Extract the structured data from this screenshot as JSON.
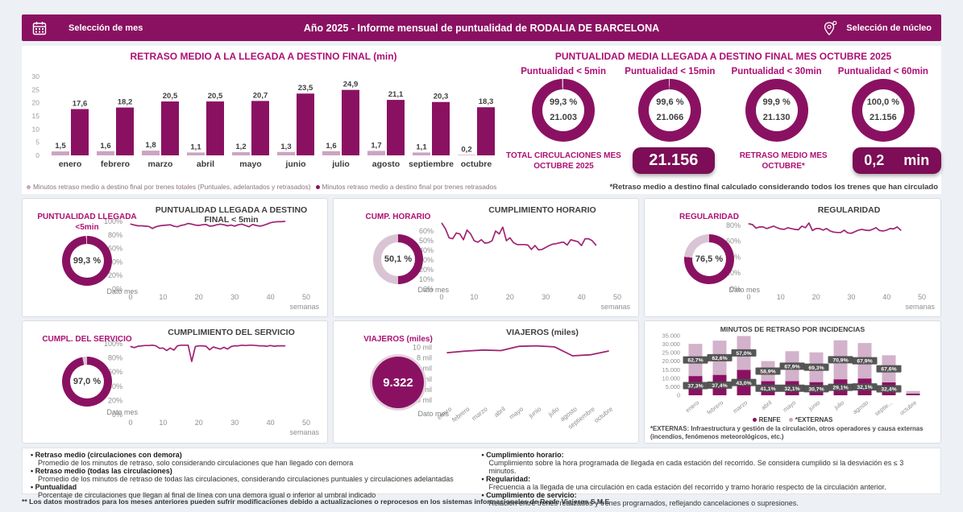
{
  "header": {
    "month_selector": "Selección de mes",
    "title": "Año 2025 - Informe mensual de puntualidad de RODALIA DE BARCELONA",
    "nucleo_selector": "Selección de núcleo"
  },
  "colors": {
    "primary_dark": "#8a1162",
    "primary_light": "#cca4c1",
    "externas_light": "#d3b2cb",
    "ring_light": "#d9c4d3",
    "accent_magenta": "#ad0f74",
    "line": "#a02472",
    "badge_bg": "#7c0d56",
    "chip_bg": "#4d4d4d"
  },
  "retraso_chart": {
    "type": "bar",
    "title": "RETRASO MEDIO A LA LLEGADA A DESTINO FINAL (min)",
    "categories": [
      "enero",
      "febrero",
      "marzo",
      "abril",
      "mayo",
      "junio",
      "julio",
      "agosto",
      "septiembre",
      "octubre"
    ],
    "series": [
      {
        "name": "Minutos retraso medio a destino final por trenes totales (Puntuales, adelantados y retrasados)",
        "values": [
          1.5,
          1.6,
          1.8,
          1.1,
          1.2,
          1.3,
          1.6,
          1.7,
          1.1,
          0.2
        ],
        "labels": [
          "1,5",
          "1,6",
          "1,8",
          "1,1",
          "1,2",
          "1,3",
          "1,6",
          "1,7",
          "1,1",
          "0,2"
        ]
      },
      {
        "name": "Minutos retraso medio a destino final por trenes retrasados",
        "values": [
          17.6,
          18.2,
          20.5,
          20.5,
          20.7,
          23.5,
          24.9,
          21.1,
          20.3,
          18.3
        ],
        "labels": [
          "17,6",
          "18,2",
          "20,5",
          "20,5",
          "20,7",
          "23,5",
          "24,9",
          "21,1",
          "20,3",
          "18,3"
        ]
      }
    ],
    "yticks": [
      0,
      5,
      10,
      15,
      20,
      25,
      30
    ],
    "ylim": [
      0,
      30
    ]
  },
  "punctuality": {
    "title": "PUNTUALIDAD MEDIA LLEGADA A DESTINO FINAL MES OCTUBRE 2025",
    "gauges": [
      {
        "label": "Puntualidad < 5min",
        "pct": 99.3,
        "pct_label": "99,3 %",
        "count": "21.003"
      },
      {
        "label": "Puntualidad < 15min",
        "pct": 99.6,
        "pct_label": "99,6 %",
        "count": "21.066"
      },
      {
        "label": "Puntualidad < 30min",
        "pct": 99.9,
        "pct_label": "99,9 %",
        "count": "21.130"
      },
      {
        "label": "Puntualidad < 60min",
        "pct": 100.0,
        "pct_label": "100,0 %",
        "count": "21.156"
      }
    ],
    "total_circulaciones_label": "TOTAL CIRCULACIONES MES OCTUBRE 2025",
    "total_circulaciones_value": "21.156",
    "retraso_medio_label": "RETRASO MEDIO MES OCTUBRE*",
    "retraso_medio_value": "0,2",
    "retraso_medio_unit": "min",
    "footnote": "*Retraso medio a destino final calculado considerando todos los trenes que han circulado"
  },
  "weekly_axis": {
    "xticks": [
      0,
      10,
      20,
      30,
      40,
      50
    ],
    "xlabel": "semanas"
  },
  "panels": {
    "p1": {
      "label_line1": "PUNTUALIDAD LLEGADA",
      "label_line2": "<5min",
      "value_pct": 99.3,
      "value_label": "99,3 %",
      "dato_mes": "Dato mes",
      "chart": {
        "type": "line",
        "title": "PUNTUALIDAD LLEGADA A DESTINO FINAL < 5min",
        "ymax": 100,
        "yticks": [
          [
            0,
            "0%"
          ],
          [
            20,
            "20%"
          ],
          [
            40,
            "40%"
          ],
          [
            60,
            "60%"
          ],
          [
            80,
            "80%"
          ],
          [
            100,
            "100%"
          ]
        ],
        "values": [
          96,
          94.5,
          93.5,
          93.5,
          93,
          92.5,
          89.5,
          92,
          93.5,
          94,
          94.5,
          95,
          93,
          92,
          94,
          95,
          97,
          96,
          94.5,
          94,
          95,
          95.5,
          93,
          93.5,
          95,
          96,
          95,
          93.5,
          94.5,
          93,
          95,
          96,
          94,
          92,
          95.5,
          94,
          93,
          94,
          96,
          98,
          99,
          99.5,
          99.5,
          100
        ]
      }
    },
    "p2": {
      "label_line1": "CUMP. HORARIO",
      "label_line2": "",
      "value_pct": 50.1,
      "value_label": "50,1 %",
      "dato_mes": "Dato mes",
      "chart": {
        "type": "line",
        "title": "CUMPLIMIENTO HORARIO",
        "ymax": 70,
        "yticks": [
          [
            0,
            "0%"
          ],
          [
            10,
            "10%"
          ],
          [
            20,
            "20%"
          ],
          [
            30,
            "30%"
          ],
          [
            40,
            "40%"
          ],
          [
            50,
            "50%"
          ],
          [
            60,
            "60%"
          ]
        ],
        "values": [
          68,
          62,
          53,
          52,
          58,
          57,
          51,
          61,
          57,
          50,
          48.5,
          51,
          47.5,
          48,
          50,
          60,
          57,
          64,
          50,
          53,
          48,
          46,
          46,
          46,
          45.5,
          41,
          45,
          40.5,
          41,
          43,
          45,
          46.5,
          47,
          48,
          48.5,
          45.5,
          51,
          50,
          49,
          45,
          52,
          52,
          50,
          45.5
        ]
      }
    },
    "p3": {
      "label_line1": "REGULARIDAD",
      "label_line2": "",
      "value_pct": 76.5,
      "value_label": "76,5 %",
      "dato_mes": "Dato mes",
      "chart": {
        "type": "line",
        "title": "REGULARIDAD",
        "ymax": 85,
        "yticks": [
          [
            0,
            "0%"
          ],
          [
            20,
            "20%"
          ],
          [
            40,
            "40%"
          ],
          [
            60,
            "60%"
          ],
          [
            80,
            "80%"
          ]
        ],
        "values": [
          82,
          81,
          76.5,
          78,
          78,
          76,
          77.5,
          79,
          77,
          75.5,
          75,
          77,
          76,
          75,
          74.5,
          79,
          77,
          83,
          73.5,
          76,
          76,
          74,
          76,
          73,
          71.5,
          71,
          71,
          74,
          70.5,
          70,
          72,
          74,
          75,
          74,
          73.5,
          75,
          77,
          73.5,
          73,
          74,
          76,
          75.5,
          78,
          74
        ]
      }
    },
    "p4": {
      "label_line1": "CUMPL. DEL SERVICIO",
      "label_line2": "",
      "value_pct": 97.0,
      "value_label": "97,0 %",
      "dato_mes": "Dato mes",
      "chart": {
        "type": "line",
        "title": "CUMPLIMIENTO DEL SERVICIO",
        "ymax": 100,
        "yticks": [
          [
            0,
            "0%"
          ],
          [
            20,
            "20%"
          ],
          [
            40,
            "40%"
          ],
          [
            60,
            "60%"
          ],
          [
            80,
            "80%"
          ],
          [
            100,
            "100%"
          ]
        ],
        "values": [
          96,
          94.5,
          96.5,
          97,
          97.5,
          97.5,
          98,
          97,
          93.5,
          94,
          90.5,
          94,
          91,
          97,
          98,
          98,
          98,
          75,
          96,
          97,
          97,
          96.5,
          91.5,
          95.5,
          94,
          92.5,
          95,
          92.5,
          96,
          97,
          97,
          98,
          97.5,
          98,
          98,
          97.5,
          97,
          97,
          96.5,
          97.5,
          96.5,
          97,
          97,
          97
        ]
      }
    },
    "p5": {
      "label_line1": "VIAJEROS (miles)",
      "value_label": "9.322",
      "dato_mes": "Dato mes",
      "chart": {
        "type": "line",
        "title": "VIAJEROS (miles)",
        "ymax": 11,
        "yticks": [
          [
            0,
            "0 mil"
          ],
          [
            2,
            "2 mil"
          ],
          [
            4,
            "4 mil"
          ],
          [
            6,
            "6 mil"
          ],
          [
            8,
            "8 mil"
          ],
          [
            10,
            "10 mil"
          ]
        ],
        "categories": [
          "enero",
          "febrero",
          "marzo",
          "abril",
          "mayo",
          "junio",
          "julio",
          "agosto",
          "septiembre",
          "octubre"
        ],
        "values": [
          9.0,
          9.3,
          9.5,
          9.4,
          10.2,
          10.3,
          10.1,
          8.4,
          8.6,
          9.3
        ]
      }
    },
    "p6": {
      "chart": {
        "type": "stacked-bar",
        "title": "MINUTOS DE RETRASO POR INCIDENCIAS",
        "categories": [
          "enero",
          "febrero",
          "marzo",
          "abril",
          "mayo",
          "junio",
          "julio",
          "agosto",
          "septie...",
          "octubre"
        ],
        "series": [
          {
            "name": "RENFE",
            "values": [
              11300,
              12000,
              14960,
              8260,
              8310,
              7740,
              9400,
              9860,
              7610,
              1000
            ]
          },
          {
            "name": "*EXTERNAS",
            "values": [
              18900,
              20100,
              19840,
              11840,
              17590,
              17460,
              22900,
              20840,
              15890,
              1500
            ]
          }
        ],
        "renfe_pct_labels": [
          "37,3%",
          "37,4%",
          "43,0%",
          "41,1%",
          "32,1%",
          "30,7%",
          "29,1%",
          "32,1%",
          "32,4%",
          null
        ],
        "externas_pct_labels": [
          "62,7%",
          "62,6%",
          "57,0%",
          "58,9%",
          "67,9%",
          "69,3%",
          "70,9%",
          "67,9%",
          "67,6%",
          null
        ],
        "yticks": [
          [
            0,
            "0"
          ],
          [
            5000,
            "5.000"
          ],
          [
            10000,
            "10.000"
          ],
          [
            15000,
            "15.000"
          ],
          [
            20000,
            "20.000"
          ],
          [
            25000,
            "25.000"
          ],
          [
            30000,
            "30.000"
          ],
          [
            35000,
            "35.000"
          ]
        ],
        "ymax": 35000,
        "legend": [
          "RENFE",
          "*EXTERNAS"
        ],
        "footnote": "*EXTERNAS: Infraestructura y gestión de la circulación, otros operadores y causa externas (incendios, fenómenos meteorológicos, etc.)"
      }
    }
  },
  "footer": {
    "left": [
      {
        "term": "Retraso medio (circulaciones con demora)",
        "def": "Promedio de los minutos de retraso, solo considerando circulaciones que han llegado con demora"
      },
      {
        "term": "Retraso medio (todas las circulaciones)",
        "def": "Promedio de los minutos de retraso de todas las circulaciones,  considerando circulaciones puntuales y circulaciones adelantadas"
      },
      {
        "term": "Puntualidad",
        "def": "Porcentaje de circulaciones que llegan al final de línea con una demora igual o inferior al umbral indicado"
      }
    ],
    "right": [
      {
        "term": "Cumplimiento horario:",
        "def": "Cumplimiento sobre la hora programada de llegada en cada estación del recorrido. Se considera cumplido si la desviación es  ≤ 3 minutos."
      },
      {
        "term": "Regularidad:",
        "def": "Frecuencia a la llegada de una circulación en cada estación del recorrido y tramo horario respecto de la circulación anterior."
      },
      {
        "term": "Cumplimiento de servicio:",
        "def": "Relación entre trenes realizados y trenes programados, reflejando cancelaciones o supresiones."
      }
    ],
    "note": "** Los datos mostrados para los meses anteriores pueden sufrir modificaciones debido a actualizaciones o reprocesos en los sistemas informacionales de Renfe Viajeros S.M.E"
  }
}
